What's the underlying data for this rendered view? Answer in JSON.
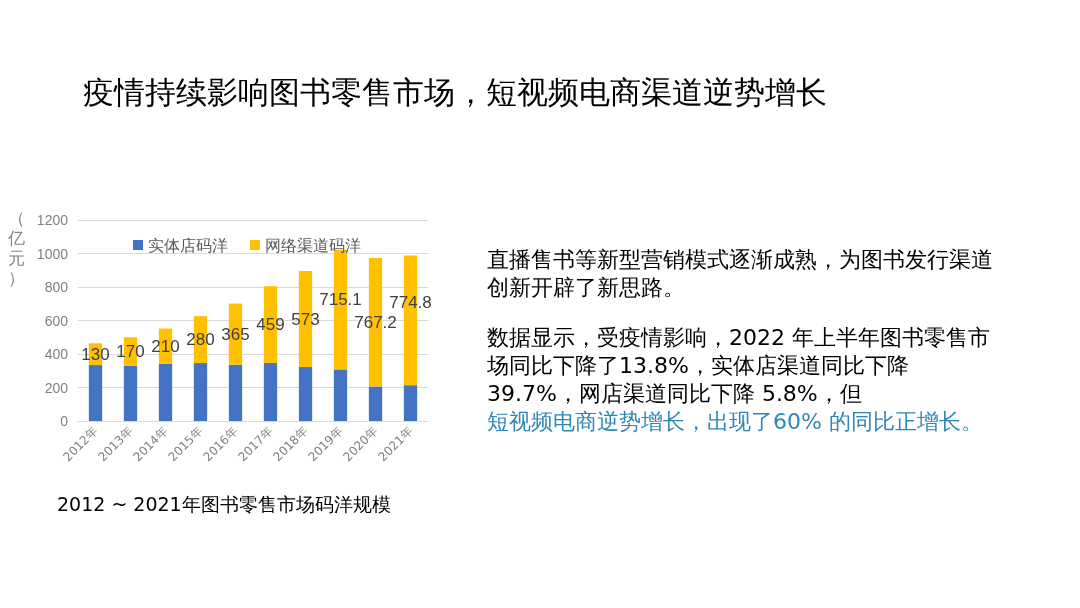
{
  "chart_data": {
    "type": "bar",
    "title": "疫情持续影响图书零售市场，短视频电商渠道逆势增长",
    "subtitle": "2012 ~ 2021年图书零售市场码洋规模",
    "ylabel": "（亿元）",
    "annotations": [
      "直播售书等新型营销模式逐渐成熟，为图书发行渠道创新开辟了新思路。",
      "数据显示，受疫情影响，2022 年上半年图书零售市场同比下降了13.8%，实体店渠道同比下降 39.7%，网店渠道同比下降 5.8%，但",
      "短视频电商逆势增长，出现了60% 的同比正增长。"
    ],
    "categories": [
      "2012年",
      "2013年",
      "2014年",
      "2015年",
      "2016年",
      "2017年",
      "2018年",
      "2019年",
      "2020年",
      "2021年"
    ],
    "series": [
      {
        "name": "实体店码洋",
        "color": "#4472c4",
        "values": [
          334,
          330,
          342,
          346,
          336,
          346,
          322,
          308,
          206,
          214
        ]
      },
      {
        "name": "网络渠道码洋",
        "color": "#ffc000",
        "values": [
          130,
          170,
          210,
          280,
          365,
          459,
          573,
          715.1,
          767.2,
          774.8
        ],
        "value_labels": [
          "130",
          "170",
          "210",
          "280",
          "365",
          "459",
          "573",
          "715.1",
          "767.2",
          "774.8"
        ]
      }
    ],
    "stacked": true,
    "ylim": [
      0,
      1200
    ],
    "yticks": [
      0,
      200,
      400,
      600,
      800,
      1000,
      1200
    ],
    "grid": "y",
    "legend": "top"
  }
}
